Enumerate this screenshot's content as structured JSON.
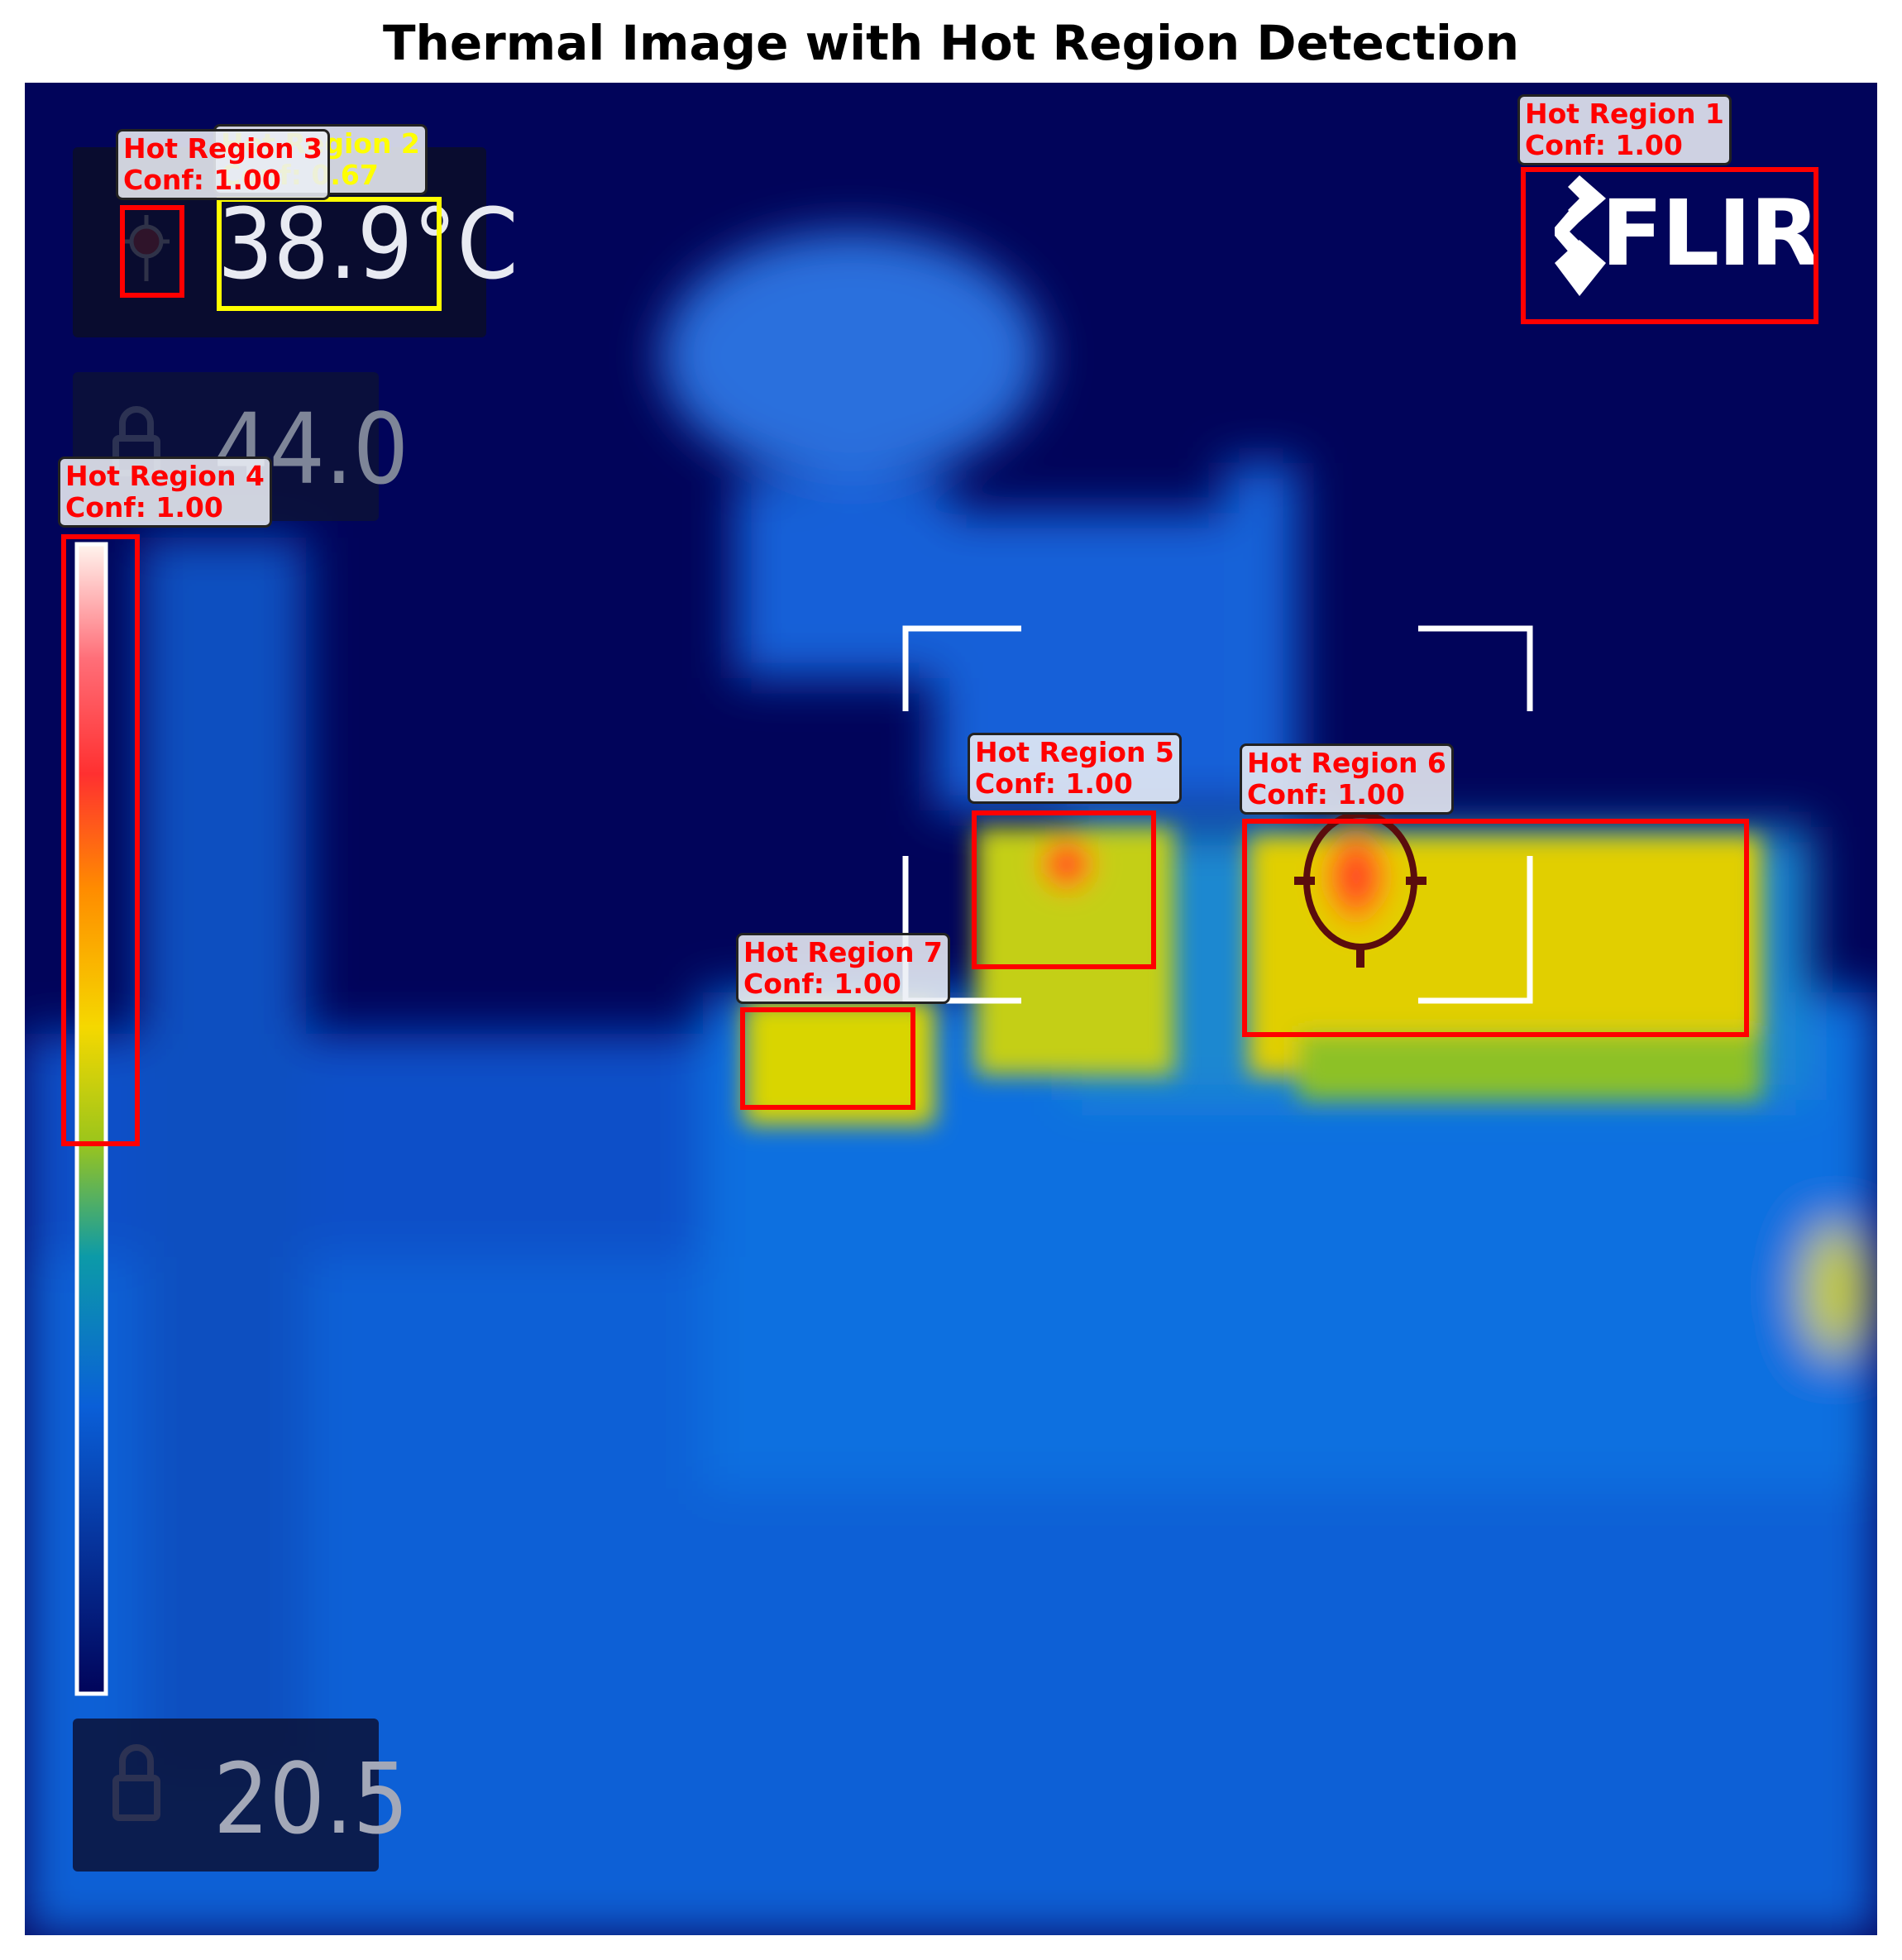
{
  "title": "Thermal Image with Hot Region Detection",
  "overlay": {
    "center_temp": "38.9°C",
    "max_lock_value": "44.0",
    "min_lock_value": "20.5",
    "brand": "FLIR"
  },
  "detections": [
    {
      "name": "Hot Region 1",
      "conf": "Conf: 1.00",
      "color": "#ff0000"
    },
    {
      "name": "Hot Region 2",
      "conf": "Conf: 0.67",
      "color": "#ffff00"
    },
    {
      "name": "Hot Region 3",
      "conf": "Conf: 1.00",
      "color": "#ff0000"
    },
    {
      "name": "Hot Region 4",
      "conf": "Conf: 1.00",
      "color": "#ff0000"
    },
    {
      "name": "Hot Region 5",
      "conf": "Conf: 1.00",
      "color": "#ff0000"
    },
    {
      "name": "Hot Region 6",
      "conf": "Conf: 1.00",
      "color": "#ff0000"
    },
    {
      "name": "Hot Region 7",
      "conf": "Conf: 1.00",
      "color": "#ff0000"
    }
  ],
  "colors": {
    "background": "#01045a",
    "box_high": "#ff0000",
    "box_low": "#ffff00"
  }
}
